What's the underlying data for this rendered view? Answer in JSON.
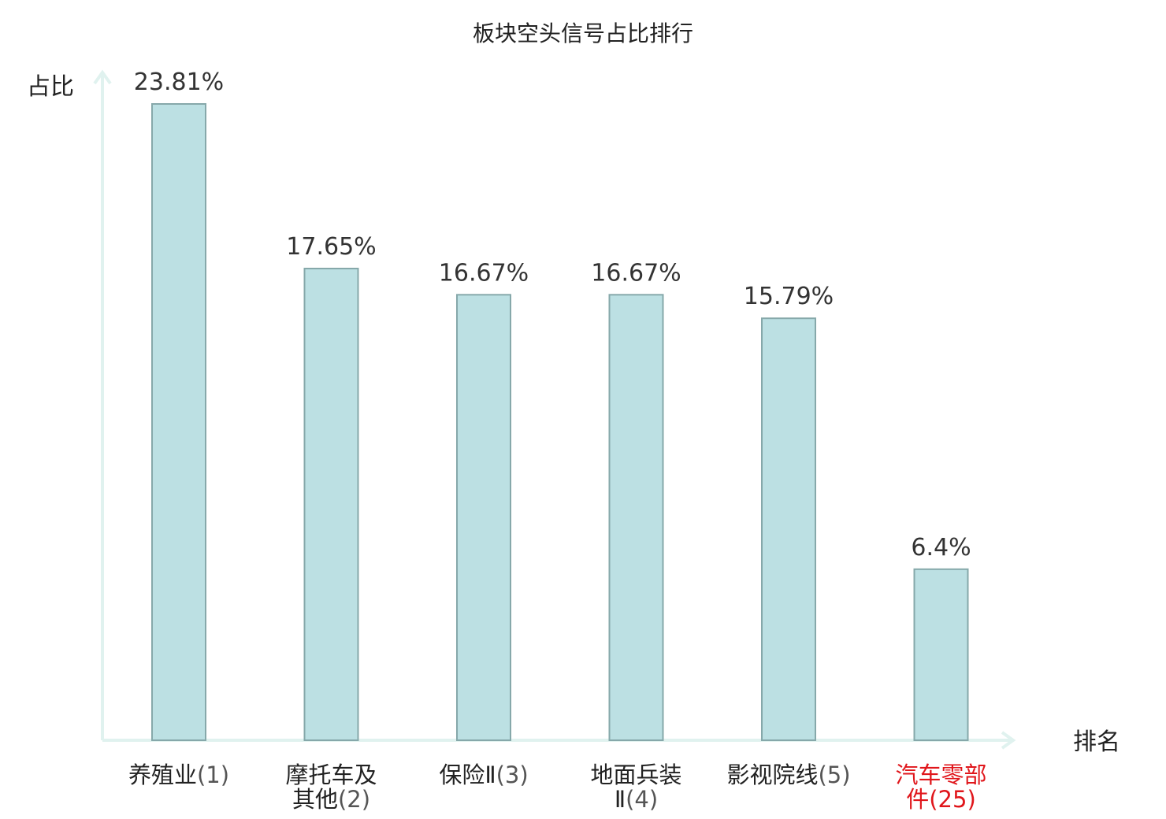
{
  "chart_data": {
    "type": "bar",
    "title": "板块空头信号占比排行",
    "ylabel": "占比",
    "xlabel": "排名",
    "categories": [
      {
        "lines": [
          "养殖业"
        ],
        "rank_line": 0,
        "rank": "(1)",
        "highlight": false
      },
      {
        "lines": [
          "摩托车及",
          "其他"
        ],
        "rank_line": 1,
        "rank": "(2)",
        "highlight": false
      },
      {
        "lines": [
          "保险Ⅱ"
        ],
        "rank_line": 0,
        "rank": "(3)",
        "highlight": false
      },
      {
        "lines": [
          "地面兵装",
          "Ⅱ"
        ],
        "rank_line": 1,
        "rank": "(4)",
        "highlight": false
      },
      {
        "lines": [
          "影视院线"
        ],
        "rank_line": 0,
        "rank": "(5)",
        "highlight": false
      },
      {
        "lines": [
          "汽车零部",
          "件"
        ],
        "rank_line": 1,
        "rank": "(25)",
        "highlight": true
      }
    ],
    "values": [
      23.81,
      17.65,
      16.67,
      16.67,
      15.79,
      6.4
    ],
    "value_labels": [
      "23.81%",
      "17.65%",
      "16.67%",
      "16.67%",
      "15.79%",
      "6.4%"
    ],
    "ylim": [
      0,
      23.81
    ],
    "grid": false,
    "legend": "none",
    "colors": {
      "bar_fill": "#bce0e3",
      "bar_stroke": "#86a8aa",
      "axis": "#e0f2ef",
      "highlight_text": "#e0161b",
      "text": "#222222"
    }
  }
}
